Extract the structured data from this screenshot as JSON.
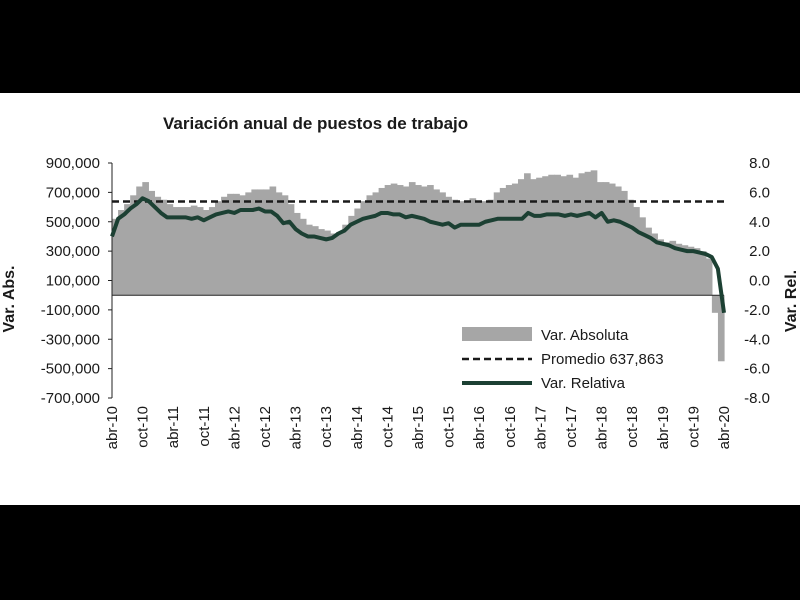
{
  "chart_data": {
    "type": "bar+line",
    "title": "Variación anual de puestos de trabajo",
    "y_left": {
      "label": "Var. Abs.",
      "ylim": [
        -700000,
        900000
      ],
      "ticks": [
        "900,000",
        "700,000",
        "500,000",
        "300,000",
        "100,000",
        "-100,000",
        "-300,000",
        "-500,000",
        "-700,000"
      ]
    },
    "y_right": {
      "label": "Var. Rel.",
      "ylim": [
        -8.0,
        8.0
      ],
      "ticks": [
        "8.0",
        "6.0",
        "4.0",
        "2.0",
        "0.0",
        "-2.0",
        "-4.0",
        "-6.0",
        "-8.0"
      ]
    },
    "x_tick_labels": [
      "abr-10",
      "oct-10",
      "abr-11",
      "oct-11",
      "abr-12",
      "oct-12",
      "abr-13",
      "oct-13",
      "abr-14",
      "oct-14",
      "abr-15",
      "oct-15",
      "abr-16",
      "oct-16",
      "abr-17",
      "oct-17",
      "abr-18",
      "oct-18",
      "abr-19",
      "oct-19",
      "abr-20"
    ],
    "legend": {
      "absoluta": "Var. Absoluta",
      "promedio": "Promedio 637,863",
      "relativa": "Var. Relativa"
    },
    "promedio_value": 637863,
    "series": [
      {
        "name": "Var. Absoluta",
        "type": "bar",
        "axis": "left",
        "values": [
          520000,
          580000,
          620000,
          680000,
          740000,
          770000,
          710000,
          670000,
          650000,
          620000,
          600000,
          600000,
          600000,
          610000,
          600000,
          580000,
          600000,
          640000,
          670000,
          690000,
          690000,
          680000,
          700000,
          720000,
          720000,
          720000,
          740000,
          700000,
          680000,
          620000,
          560000,
          520000,
          480000,
          470000,
          450000,
          440000,
          420000,
          430000,
          480000,
          540000,
          590000,
          640000,
          680000,
          700000,
          730000,
          750000,
          760000,
          750000,
          740000,
          770000,
          750000,
          740000,
          750000,
          720000,
          700000,
          670000,
          650000,
          640000,
          640000,
          660000,
          640000,
          640000,
          650000,
          700000,
          730000,
          750000,
          760000,
          790000,
          830000,
          790000,
          800000,
          810000,
          820000,
          820000,
          810000,
          820000,
          800000,
          830000,
          840000,
          850000,
          770000,
          770000,
          760000,
          740000,
          710000,
          650000,
          600000,
          530000,
          460000,
          420000,
          380000,
          360000,
          370000,
          350000,
          340000,
          330000,
          320000,
          300000,
          250000,
          -120000,
          -450000
        ]
      },
      {
        "name": "Var. Relativa",
        "type": "line",
        "axis": "right",
        "values": [
          3.0,
          4.2,
          4.5,
          4.9,
          5.2,
          5.6,
          5.4,
          5.0,
          4.6,
          4.3,
          4.3,
          4.3,
          4.3,
          4.2,
          4.3,
          4.1,
          4.3,
          4.5,
          4.6,
          4.7,
          4.6,
          4.8,
          4.8,
          4.8,
          4.9,
          4.7,
          4.7,
          4.4,
          3.9,
          4.0,
          3.5,
          3.2,
          3.0,
          3.0,
          2.9,
          2.8,
          2.9,
          3.2,
          3.4,
          3.8,
          4.0,
          4.2,
          4.3,
          4.4,
          4.6,
          4.6,
          4.5,
          4.5,
          4.3,
          4.4,
          4.3,
          4.2,
          4.0,
          3.9,
          3.8,
          3.9,
          3.6,
          3.8,
          3.8,
          3.8,
          3.8,
          4.0,
          4.1,
          4.2,
          4.2,
          4.2,
          4.2,
          4.2,
          4.6,
          4.4,
          4.4,
          4.5,
          4.5,
          4.5,
          4.4,
          4.5,
          4.4,
          4.5,
          4.6,
          4.3,
          4.6,
          4.0,
          4.1,
          4.0,
          3.8,
          3.6,
          3.3,
          3.1,
          2.9,
          2.6,
          2.5,
          2.4,
          2.2,
          2.1,
          2.0,
          2.0,
          1.9,
          1.8,
          1.6,
          0.8,
          -2.2
        ]
      }
    ]
  },
  "colors": {
    "bars": "#a6a6a6",
    "line": "#1c4033",
    "promedio": "#1a1a1a",
    "text": "#1a1a1a"
  }
}
